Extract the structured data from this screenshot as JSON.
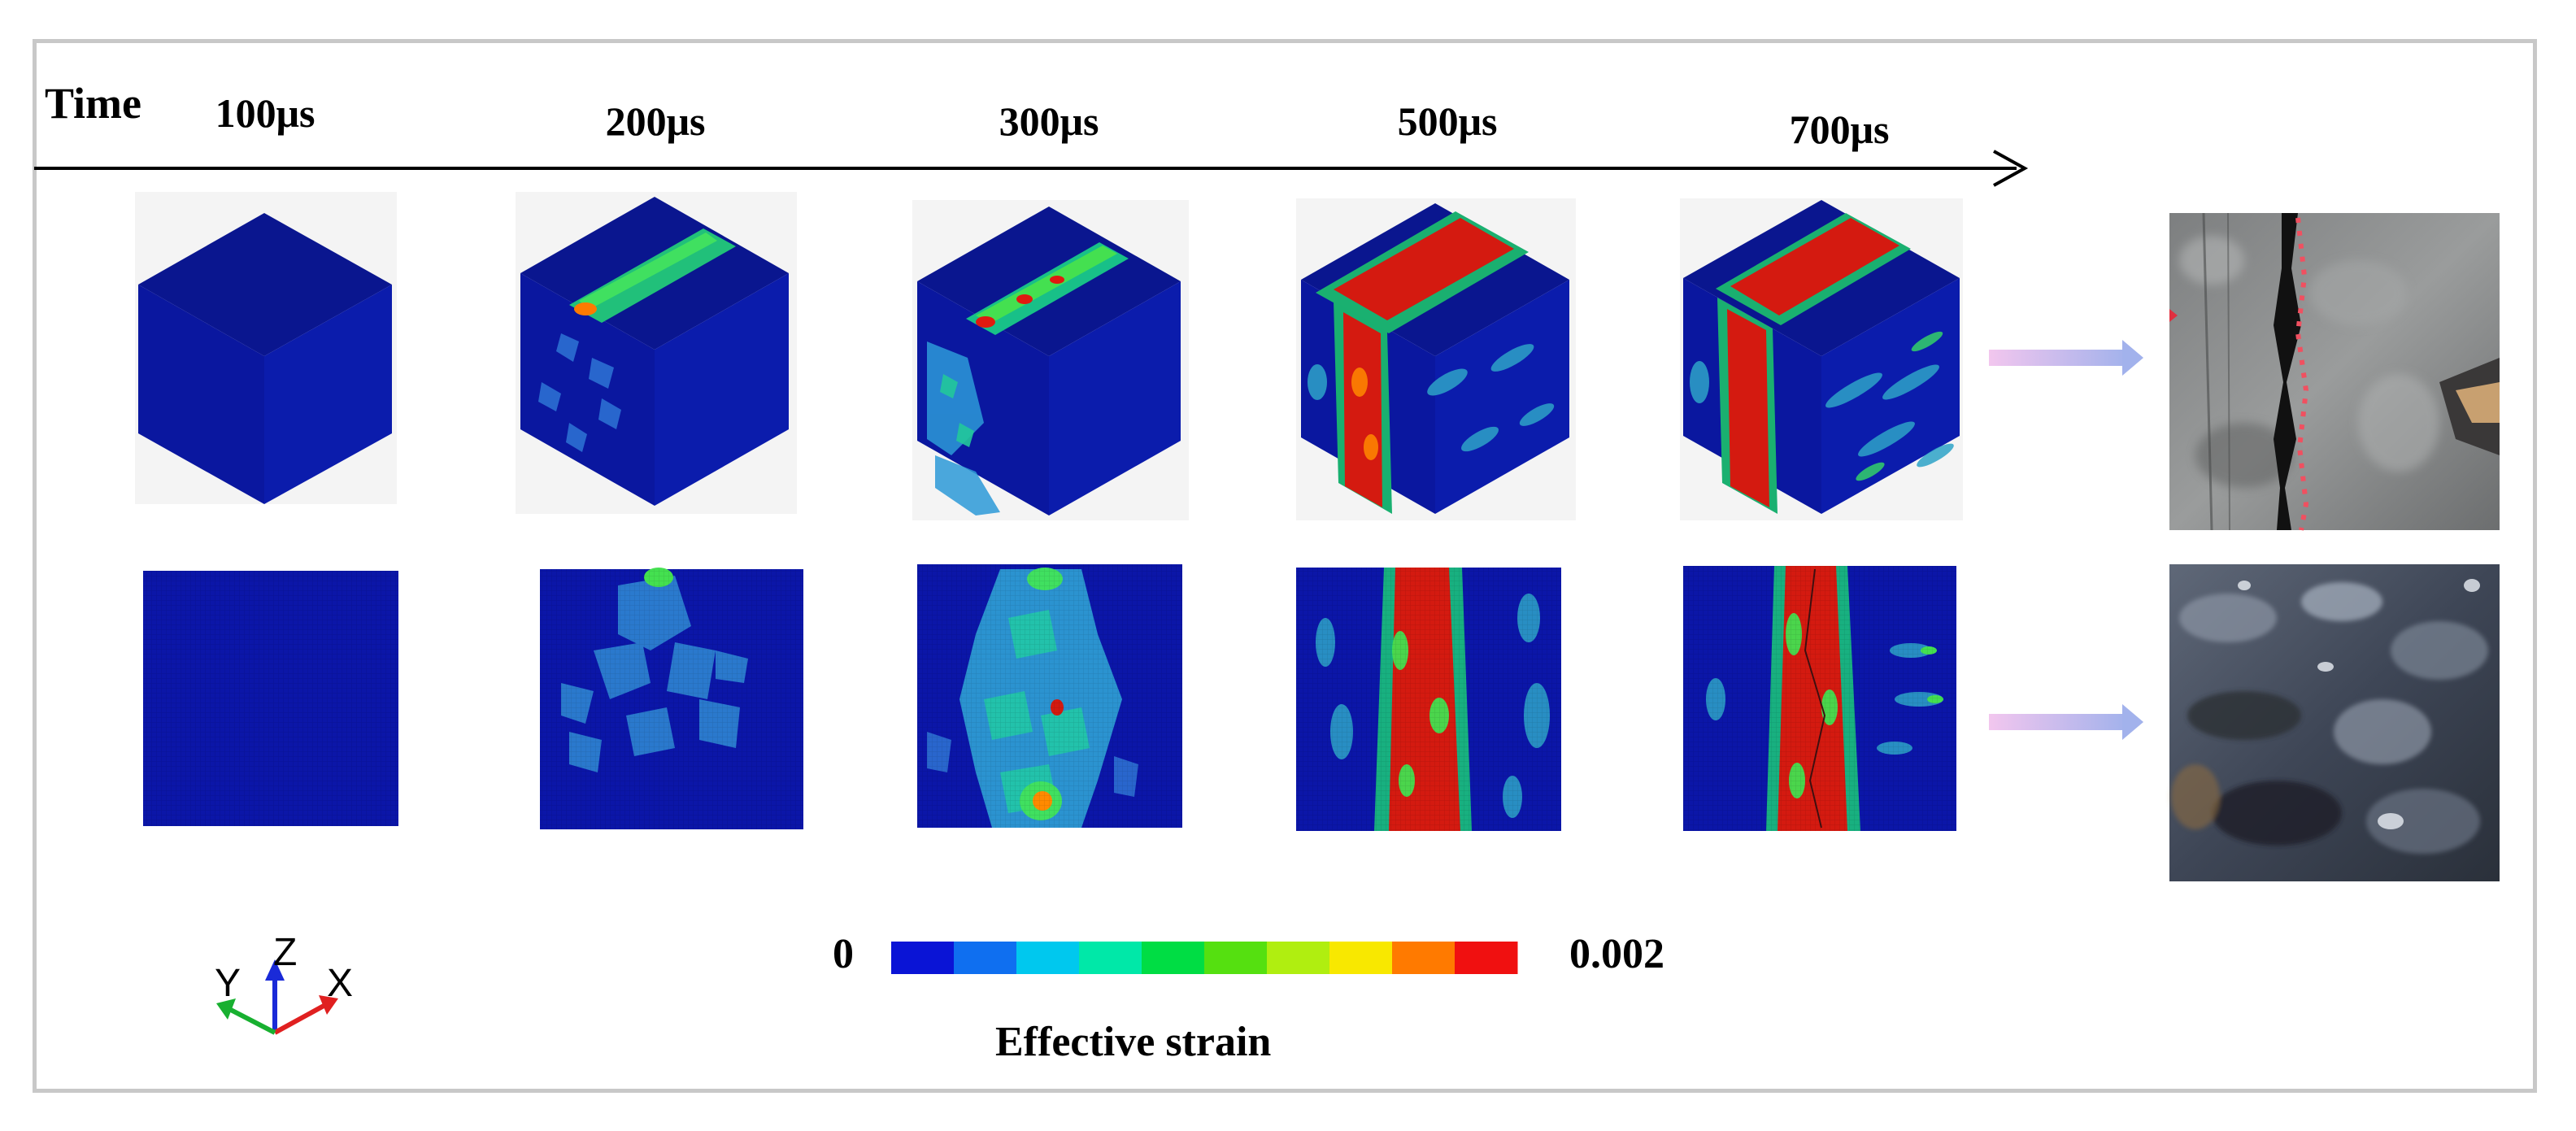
{
  "timeline": {
    "axis_label": "Time",
    "times": [
      "100μs",
      "200μs",
      "300μs",
      "500μs",
      "700μs"
    ]
  },
  "colorbar": {
    "min_label": "0",
    "max_label": "0.002",
    "title": "Effective strain",
    "colors": [
      "#0a14d6",
      "#0f6ff0",
      "#00c8ee",
      "#00e8a8",
      "#00dd44",
      "#55e010",
      "#b0ee10",
      "#f8e800",
      "#ff7a00",
      "#f01010"
    ]
  },
  "axes_triad": {
    "x": "X",
    "y": "Y",
    "z": "Z"
  },
  "colors": {
    "background_blue": "#0a14a0",
    "face_left": "#0a179f",
    "face_right": "#0b1cac",
    "face_top": "#0a168f",
    "arrow_pink": "#f0c8ee",
    "arrow_blue": "#a8b4ec"
  }
}
